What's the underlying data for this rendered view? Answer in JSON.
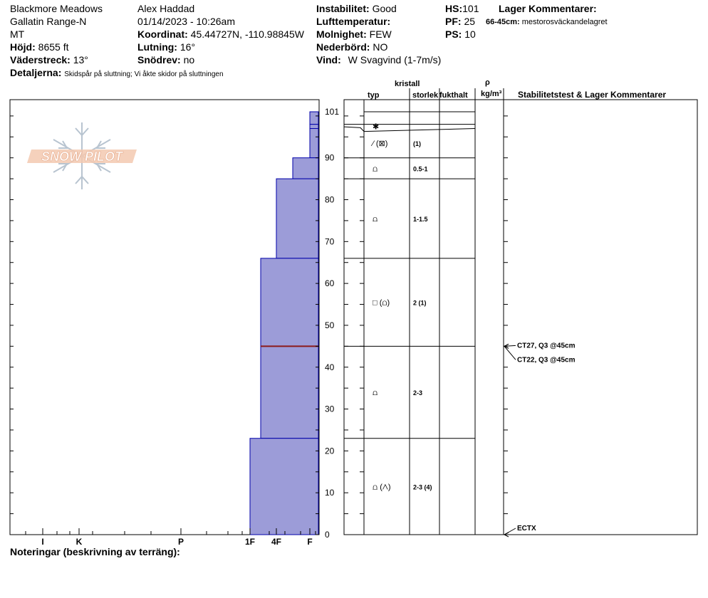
{
  "header": {
    "location": "Blackmore Meadows",
    "range": "Gallatin Range-N",
    "state": "MT",
    "elevation_label": "Höjd:",
    "elevation_value": "8655 ft",
    "aspect_label": "Väderstreck:",
    "aspect_value": "13°",
    "observer": "Alex Haddad",
    "datetime": "01/14/2023 - 10:26am",
    "coord_label": "Koordinat:",
    "coord_value": "45.44727N, -110.98845W",
    "slope_label": "Lutning:",
    "slope_value": "16°",
    "drift_label": "Snödrev:",
    "drift_value": "no",
    "stability_label": "Instabilitet:",
    "stability_value": "Good",
    "airtemp_label": "Lufttemperatur:",
    "airtemp_value": "",
    "sky_label": "Molnighet:",
    "sky_value": "FEW",
    "precip_label": "Nederbörd:",
    "precip_value": "NO",
    "wind_label": "Vind:",
    "wind_value": "W Svagvind (1-7m/s)",
    "hs_label": "HS:",
    "hs_value": "101",
    "pf_label": "PF:",
    "pf_value": "25",
    "ps_label": "PS:",
    "ps_value": "10",
    "layer_comments_label": "Lager Kommentarer:",
    "layer_comment_range": "66-45cm:",
    "layer_comment_text": "mestorosväckandelagret",
    "details_label": "Detaljerna:",
    "details_text": "Skidspår på sluttning;  Vi åkte skidor på sluttningen"
  },
  "logo_text": "SNOW PILOT",
  "table_headers": {
    "kristall": "kristall",
    "typ": "typ",
    "storlek": "storlek",
    "fukthalt": "fukthalt",
    "rho": "ρ",
    "density_unit": "kg/m³",
    "stability": "Stabilitetstest & Lager Kommentarer"
  },
  "notes_label": "Noteringar (beskrivning av terräng):",
  "colors": {
    "layer_fill": "#9c9cd8",
    "layer_stroke": "#0000aa",
    "weak_layer": "#8b1a1a"
  },
  "chart_data": {
    "type": "bar",
    "title": "",
    "xlabel": "",
    "ylabel": "",
    "y_axis": {
      "min": 0,
      "max": 101,
      "ticks": [
        0,
        10,
        20,
        30,
        40,
        50,
        60,
        70,
        80,
        90,
        101
      ]
    },
    "hardness_ticks": [
      "I",
      "K",
      "P",
      "1F",
      "4F",
      "F"
    ],
    "layers": [
      {
        "top": 101,
        "bottom": 98,
        "hardness": "F",
        "symbol": "",
        "size": ""
      },
      {
        "top": 98,
        "bottom": 97,
        "hardness": "F",
        "symbol": "✱",
        "size": ""
      },
      {
        "top": 97,
        "bottom": 90,
        "hardness": "F+",
        "symbol": "⁄ (⊠)",
        "size": "(1)"
      },
      {
        "top": 90,
        "bottom": 85,
        "hardness": "4F+",
        "symbol": "⩍",
        "size": "0.5-1"
      },
      {
        "top": 85,
        "bottom": 66,
        "hardness": "4F",
        "symbol": "⩍",
        "size": "1-1.5"
      },
      {
        "top": 66,
        "bottom": 45,
        "hardness": "1F+",
        "symbol": "□ (⩍)",
        "size": "2 (1)"
      },
      {
        "top": 45,
        "bottom": 23,
        "hardness": "1F+",
        "symbol": "⩍",
        "size": "2-3"
      },
      {
        "top": 23,
        "bottom": 0,
        "hardness": "1F",
        "symbol": "⩍ (⋀)",
        "size": "2-3 (4)"
      }
    ],
    "weak_layer_depth": 45,
    "tests": [
      {
        "label": "CT27, Q3 @45cm",
        "depth": 45
      },
      {
        "label": "CT22, Q3 @45cm",
        "depth": 45
      },
      {
        "label": "ECTX",
        "depth": 0
      }
    ]
  }
}
